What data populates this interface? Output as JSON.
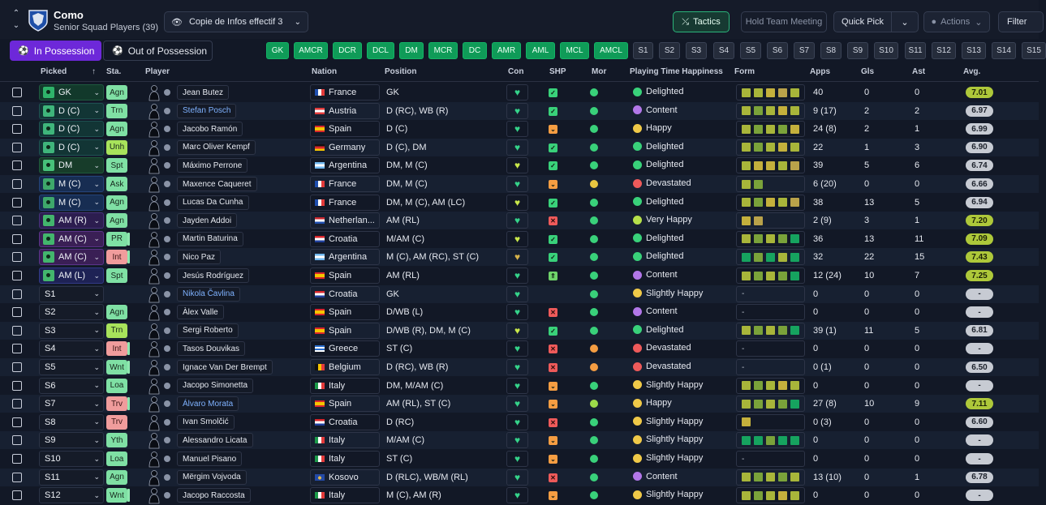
{
  "club": {
    "name": "Como",
    "subtitle": "Senior Squad Players (39)"
  },
  "view_select": {
    "label": "Copie de Infos effectif 3"
  },
  "toolbar": {
    "tactics": "Tactics",
    "hold_meeting": "Hold Team Meeting",
    "quick_pick": "Quick Pick",
    "actions": "Actions",
    "filter": "Filter"
  },
  "possession": {
    "in": "In Possession",
    "out": "Out of Possession"
  },
  "position_chips": [
    "GK",
    "AMCR",
    "DCR",
    "DCL",
    "DM",
    "MCR",
    "DC",
    "AMR",
    "AML",
    "MCL",
    "AMCL"
  ],
  "sub_chips": [
    "S1",
    "S2",
    "S3",
    "S4",
    "S5",
    "S6",
    "S7",
    "S8",
    "S9",
    "S10",
    "S11",
    "S12",
    "S13",
    "S14",
    "S15"
  ],
  "columns": {
    "picked": "Picked",
    "sta": "Sta.",
    "player": "Player",
    "nation": "Nation",
    "position": "Position",
    "con": "Con",
    "shp": "SHP",
    "mor": "Mor",
    "happiness": "Playing Time Happiness",
    "form": "Form",
    "apps": "Apps",
    "gls": "Gls",
    "ast": "Ast",
    "avg": "Avg."
  },
  "colors": {
    "accent_purple": "#6d28d9",
    "tactics_green": "#2bb47a",
    "chip_green": "#0f9b58"
  },
  "rows": [
    {
      "picked": "GK",
      "pk": "gk",
      "sta": "Agn",
      "stac": "green",
      "bar": false,
      "name": "Jean Butez",
      "blue": false,
      "nation": "France",
      "flag": "fr",
      "pos": "GK",
      "con": "g",
      "shp": "ok",
      "mor": "g",
      "hap": "Delighted",
      "face": "g",
      "form": "aacea",
      "apps": "40",
      "gls": "0",
      "ast": "0",
      "avg": "7.01",
      "avgc": "hi"
    },
    {
      "picked": "D (C)",
      "pk": "def",
      "sta": "Trn",
      "stac": "green",
      "bar": false,
      "name": "Stefan Posch",
      "blue": true,
      "nation": "Austria",
      "flag": "at",
      "pos": "D (RC), WB (R)",
      "con": "g",
      "shp": "ok",
      "mor": "g",
      "hap": "Content",
      "face": "p",
      "form": "abaca",
      "apps": "9 (17)",
      "gls": "2",
      "ast": "2",
      "avg": "6.97",
      "avgc": "mid"
    },
    {
      "picked": "D (C)",
      "pk": "def",
      "sta": "Agn",
      "stac": "green",
      "bar": false,
      "name": "Jacobo Ramón",
      "blue": false,
      "nation": "Spain",
      "flag": "es",
      "pos": "D (C)",
      "con": "g",
      "shp": "warn",
      "mor": "g",
      "hap": "Happy",
      "face": "y",
      "form": "ababc",
      "apps": "24 (8)",
      "gls": "2",
      "ast": "1",
      "avg": "6.99",
      "avgc": "mid"
    },
    {
      "picked": "D (C)",
      "pk": "def",
      "sta": "Unh",
      "stac": "lime",
      "bar": false,
      "name": "Marc Oliver Kempf",
      "blue": false,
      "nation": "Germany",
      "flag": "de",
      "pos": "D (C), DM",
      "con": "g",
      "shp": "ok",
      "mor": "g",
      "hap": "Delighted",
      "face": "g",
      "form": "abaca",
      "apps": "22",
      "gls": "1",
      "ast": "3",
      "avg": "6.90",
      "avgc": "mid"
    },
    {
      "picked": "DM",
      "pk": "dm",
      "sta": "Spt",
      "stac": "green",
      "bar": false,
      "name": "Máximo Perrone",
      "blue": false,
      "nation": "Argentina",
      "flag": "ar",
      "pos": "DM, M (C)",
      "con": "y",
      "shp": "ok",
      "mor": "g",
      "hap": "Delighted",
      "face": "g",
      "form": "accae",
      "apps": "39",
      "gls": "5",
      "ast": "6",
      "avg": "6.74",
      "avgc": "mid"
    },
    {
      "picked": "M (C)",
      "pk": "mid",
      "sta": "Ask",
      "stac": "green",
      "bar": false,
      "name": "Maxence Caqueret",
      "blue": false,
      "nation": "France",
      "flag": "fr",
      "pos": "DM, M (C)",
      "con": "g",
      "shp": "warn",
      "mor": "y",
      "hap": "Devastated",
      "face": "r",
      "form": "ab",
      "apps": "6 (20)",
      "gls": "0",
      "ast": "0",
      "avg": "6.66",
      "avgc": "mid"
    },
    {
      "picked": "M (C)",
      "pk": "mid",
      "sta": "Agn",
      "stac": "green",
      "bar": false,
      "name": "Lucas Da Cunha",
      "blue": false,
      "nation": "France",
      "flag": "fr",
      "pos": "DM, M (C), AM (LC)",
      "con": "y",
      "shp": "ok",
      "mor": "g",
      "hap": "Delighted",
      "face": "g",
      "form": "abcae",
      "apps": "38",
      "gls": "13",
      "ast": "5",
      "avg": "6.94",
      "avgc": "mid"
    },
    {
      "picked": "AM (R)",
      "pk": "amr",
      "sta": "Agn",
      "stac": "green",
      "bar": false,
      "name": "Jayden Addoi",
      "blue": false,
      "nation": "Netherlan...",
      "flag": "nl",
      "pos": "AM (RL)",
      "con": "g",
      "shp": "bad",
      "mor": "g",
      "hap": "Very Happy",
      "face": "lg",
      "form": "ce",
      "apps": "2 (9)",
      "gls": "3",
      "ast": "1",
      "avg": "7.20",
      "avgc": "hi"
    },
    {
      "picked": "AM (C)",
      "pk": "amc",
      "sta": "PR",
      "stac": "green",
      "bar": true,
      "name": "Martin Baturina",
      "blue": false,
      "nation": "Croatia",
      "flag": "hr",
      "pos": "M/AM (C)",
      "con": "y",
      "shp": "ok",
      "mor": "g",
      "hap": "Delighted",
      "face": "g",
      "form": "ababd",
      "apps": "36",
      "gls": "13",
      "ast": "11",
      "avg": "7.09",
      "avgc": "hi"
    },
    {
      "picked": "AM (C)",
      "pk": "amc",
      "sta": "Int",
      "stac": "red",
      "bar": true,
      "name": "Nico Paz",
      "blue": false,
      "nation": "Argentina",
      "flag": "ar",
      "pos": "M (C), AM (RC), ST (C)",
      "con": "p",
      "shp": "ok",
      "mor": "g",
      "hap": "Delighted",
      "face": "g",
      "form": "dbdad",
      "apps": "32",
      "gls": "22",
      "ast": "15",
      "avg": "7.43",
      "avgc": "hi"
    },
    {
      "picked": "AM (L)",
      "pk": "aml",
      "sta": "Spt",
      "stac": "green",
      "bar": false,
      "name": "Jesús Rodríguez",
      "blue": false,
      "nation": "Spain",
      "flag": "es",
      "pos": "AM (RL)",
      "con": "g",
      "shp": "up",
      "mor": "g",
      "hap": "Content",
      "face": "p",
      "form": "ababd",
      "apps": "12 (24)",
      "gls": "10",
      "ast": "7",
      "avg": "7.25",
      "avgc": "hi"
    },
    {
      "picked": "S1",
      "pk": "sub",
      "sta": "",
      "stac": "",
      "bar": false,
      "name": "Nikola Čavlina",
      "blue": true,
      "nation": "Croatia",
      "flag": "hr",
      "pos": "GK",
      "con": "g",
      "shp": "",
      "mor": "g",
      "hap": "Slightly Happy",
      "face": "y",
      "form": "-",
      "apps": "0",
      "gls": "0",
      "ast": "0",
      "avg": "-",
      "avgc": "none"
    },
    {
      "picked": "S2",
      "pk": "sub",
      "sta": "Agn",
      "stac": "green",
      "bar": false,
      "name": "Àlex Valle",
      "blue": false,
      "nation": "Spain",
      "flag": "es",
      "pos": "D/WB (L)",
      "con": "g",
      "shp": "bad",
      "mor": "g",
      "hap": "Content",
      "face": "p",
      "form": "-",
      "apps": "0",
      "gls": "0",
      "ast": "0",
      "avg": "-",
      "avgc": "none"
    },
    {
      "picked": "S3",
      "pk": "sub",
      "sta": "Trn",
      "stac": "lime",
      "bar": false,
      "name": "Sergi Roberto",
      "blue": false,
      "nation": "Spain",
      "flag": "es",
      "pos": "D/WB (R), DM, M (C)",
      "con": "y",
      "shp": "ok",
      "mor": "g",
      "hap": "Delighted",
      "face": "g",
      "form": "ababd",
      "apps": "39 (1)",
      "gls": "11",
      "ast": "5",
      "avg": "6.81",
      "avgc": "mid"
    },
    {
      "picked": "S4",
      "pk": "sub",
      "sta": "Int",
      "stac": "red",
      "bar": true,
      "name": "Tasos Douvikas",
      "blue": false,
      "nation": "Greece",
      "flag": "gr",
      "pos": "ST (C)",
      "con": "g",
      "shp": "bad",
      "mor": "o",
      "hap": "Devastated",
      "face": "r",
      "form": "-",
      "apps": "0",
      "gls": "0",
      "ast": "0",
      "avg": "-",
      "avgc": "none"
    },
    {
      "picked": "S5",
      "pk": "sub",
      "sta": "Wnt",
      "stac": "green",
      "bar": true,
      "name": "Ignace Van Der Brempt",
      "blue": false,
      "nation": "Belgium",
      "flag": "be",
      "pos": "D (RC), WB (R)",
      "con": "g",
      "shp": "bad",
      "mor": "o",
      "hap": "Devastated",
      "face": "r",
      "form": "-",
      "apps": "0 (1)",
      "gls": "0",
      "ast": "0",
      "avg": "6.50",
      "avgc": "mid"
    },
    {
      "picked": "S6",
      "pk": "sub",
      "sta": "Loa",
      "stac": "green",
      "bar": false,
      "name": "Jacopo Simonetta",
      "blue": false,
      "nation": "Italy",
      "flag": "it",
      "pos": "DM, M/AM (C)",
      "con": "g",
      "shp": "warn",
      "mor": "g",
      "hap": "Slightly Happy",
      "face": "y",
      "form": "abaca",
      "apps": "0",
      "gls": "0",
      "ast": "0",
      "avg": "-",
      "avgc": "none"
    },
    {
      "picked": "S7",
      "pk": "sub",
      "sta": "Trv",
      "stac": "red",
      "bar": true,
      "name": "Álvaro Morata",
      "blue": true,
      "nation": "Spain",
      "flag": "es",
      "pos": "AM (RL), ST (C)",
      "con": "g",
      "shp": "warn",
      "mor": "lg",
      "hap": "Happy",
      "face": "y",
      "form": "ababd",
      "apps": "27 (8)",
      "gls": "10",
      "ast": "9",
      "avg": "7.11",
      "avgc": "hi"
    },
    {
      "picked": "S8",
      "pk": "sub",
      "sta": "Trv",
      "stac": "red",
      "bar": false,
      "name": "Ivan Smolčić",
      "blue": false,
      "nation": "Croatia",
      "flag": "hr",
      "pos": "D (RC)",
      "con": "g",
      "shp": "bad",
      "mor": "g",
      "hap": "Slightly Happy",
      "face": "y",
      "form": "c",
      "apps": "0 (3)",
      "gls": "0",
      "ast": "0",
      "avg": "6.60",
      "avgc": "mid"
    },
    {
      "picked": "S9",
      "pk": "sub",
      "sta": "Yth",
      "stac": "green",
      "bar": false,
      "name": "Alessandro Licata",
      "blue": false,
      "nation": "Italy",
      "flag": "it",
      "pos": "M/AM (C)",
      "con": "g",
      "shp": "warn",
      "mor": "g",
      "hap": "Slightly Happy",
      "face": "y",
      "form": "ddbdd",
      "apps": "0",
      "gls": "0",
      "ast": "0",
      "avg": "-",
      "avgc": "none"
    },
    {
      "picked": "S10",
      "pk": "sub",
      "sta": "Loa",
      "stac": "green",
      "bar": false,
      "name": "Manuel Pisano",
      "blue": false,
      "nation": "Italy",
      "flag": "it",
      "pos": "ST (C)",
      "con": "g",
      "shp": "warn",
      "mor": "g",
      "hap": "Slightly Happy",
      "face": "y",
      "form": "-",
      "apps": "0",
      "gls": "0",
      "ast": "0",
      "avg": "-",
      "avgc": "none"
    },
    {
      "picked": "S11",
      "pk": "sub",
      "sta": "Agn",
      "stac": "green",
      "bar": false,
      "name": "Mërgim Vojvoda",
      "blue": false,
      "nation": "Kosovo",
      "flag": "xk",
      "pos": "D (RLC), WB/M (RL)",
      "con": "g",
      "shp": "bad",
      "mor": "g",
      "hap": "Content",
      "face": "p",
      "form": "ababa",
      "apps": "13 (10)",
      "gls": "0",
      "ast": "1",
      "avg": "6.78",
      "avgc": "mid"
    },
    {
      "picked": "S12",
      "pk": "sub",
      "sta": "Wnt",
      "stac": "green",
      "bar": true,
      "name": "Jacopo Raccosta",
      "blue": false,
      "nation": "Italy",
      "flag": "it",
      "pos": "M (C), AM (R)",
      "con": "g",
      "shp": "warn",
      "mor": "g",
      "hap": "Slightly Happy",
      "face": "y",
      "form": "abaca",
      "apps": "0",
      "gls": "0",
      "ast": "0",
      "avg": "-",
      "avgc": "none"
    }
  ]
}
